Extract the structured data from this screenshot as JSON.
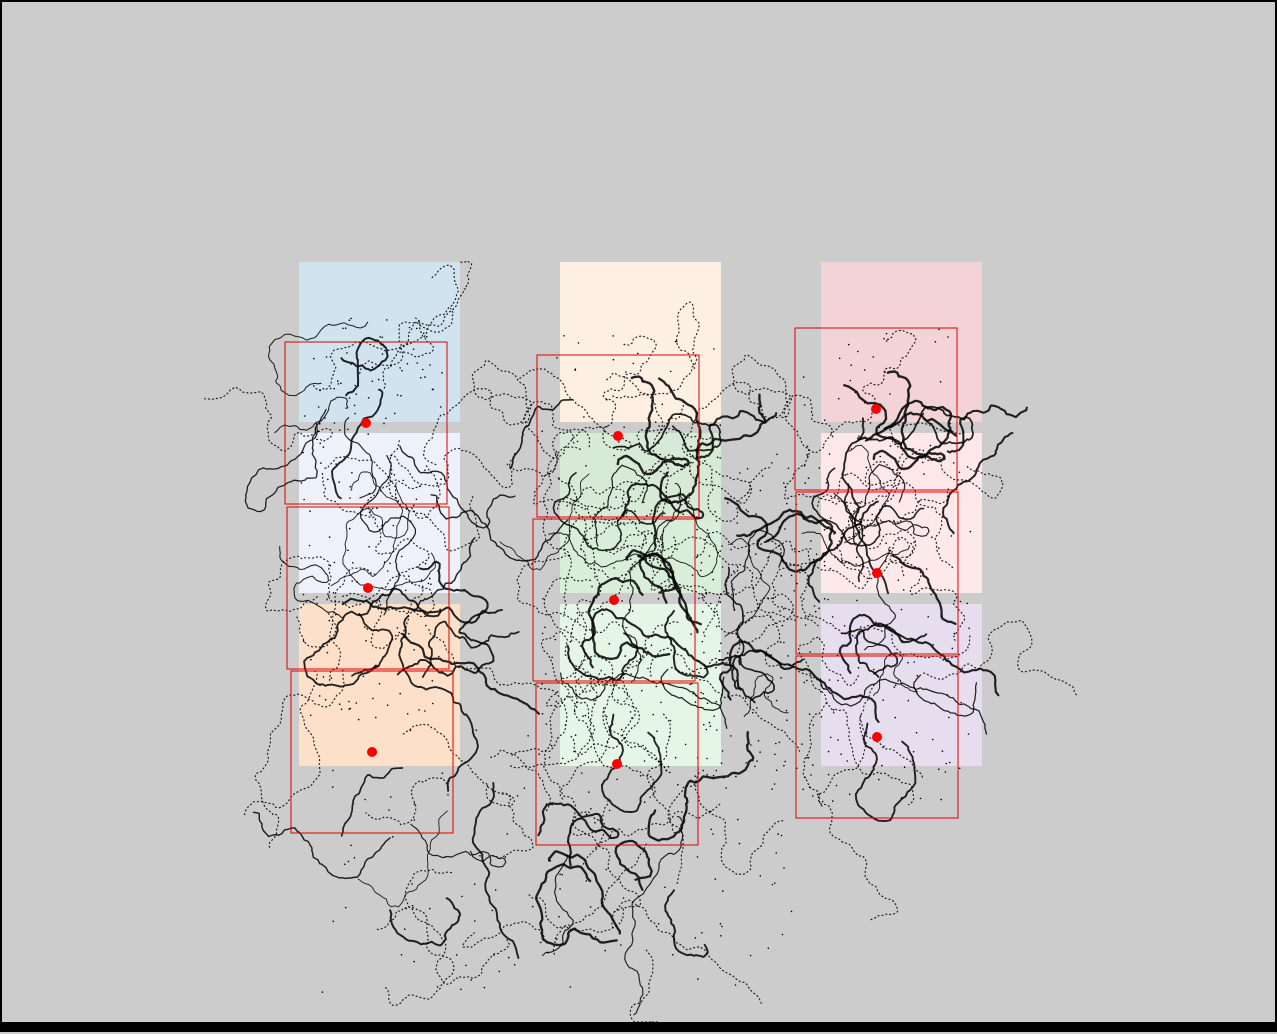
{
  "tiles": [
    {
      "name": "tile-col1-row1",
      "color": "#d1e3ef"
    },
    {
      "name": "tile-col1-row2",
      "color": "#edf1fa"
    },
    {
      "name": "tile-col1-row3",
      "color": "#eef1f9"
    },
    {
      "name": "tile-col1-row4",
      "color": "#fde0c9"
    },
    {
      "name": "tile-col2-row1",
      "color": "#fdf0e3"
    },
    {
      "name": "tile-col2-row2",
      "color": "#d6ead6"
    },
    {
      "name": "tile-col2-row3",
      "color": "#d9eed9"
    },
    {
      "name": "tile-col2-row4",
      "color": "#e6f6e6"
    },
    {
      "name": "tile-col3-row1",
      "color": "#f3d3d6"
    },
    {
      "name": "tile-col3-row2",
      "color": "#fde7e8"
    },
    {
      "name": "tile-col3-row3",
      "color": "#fde9ea"
    },
    {
      "name": "tile-col3-row4",
      "color": "#e6deee"
    }
  ],
  "marker_color": "#ff0000",
  "box_color": "#e00000",
  "trace_color": "#000000",
  "background_color": "#cccccc"
}
